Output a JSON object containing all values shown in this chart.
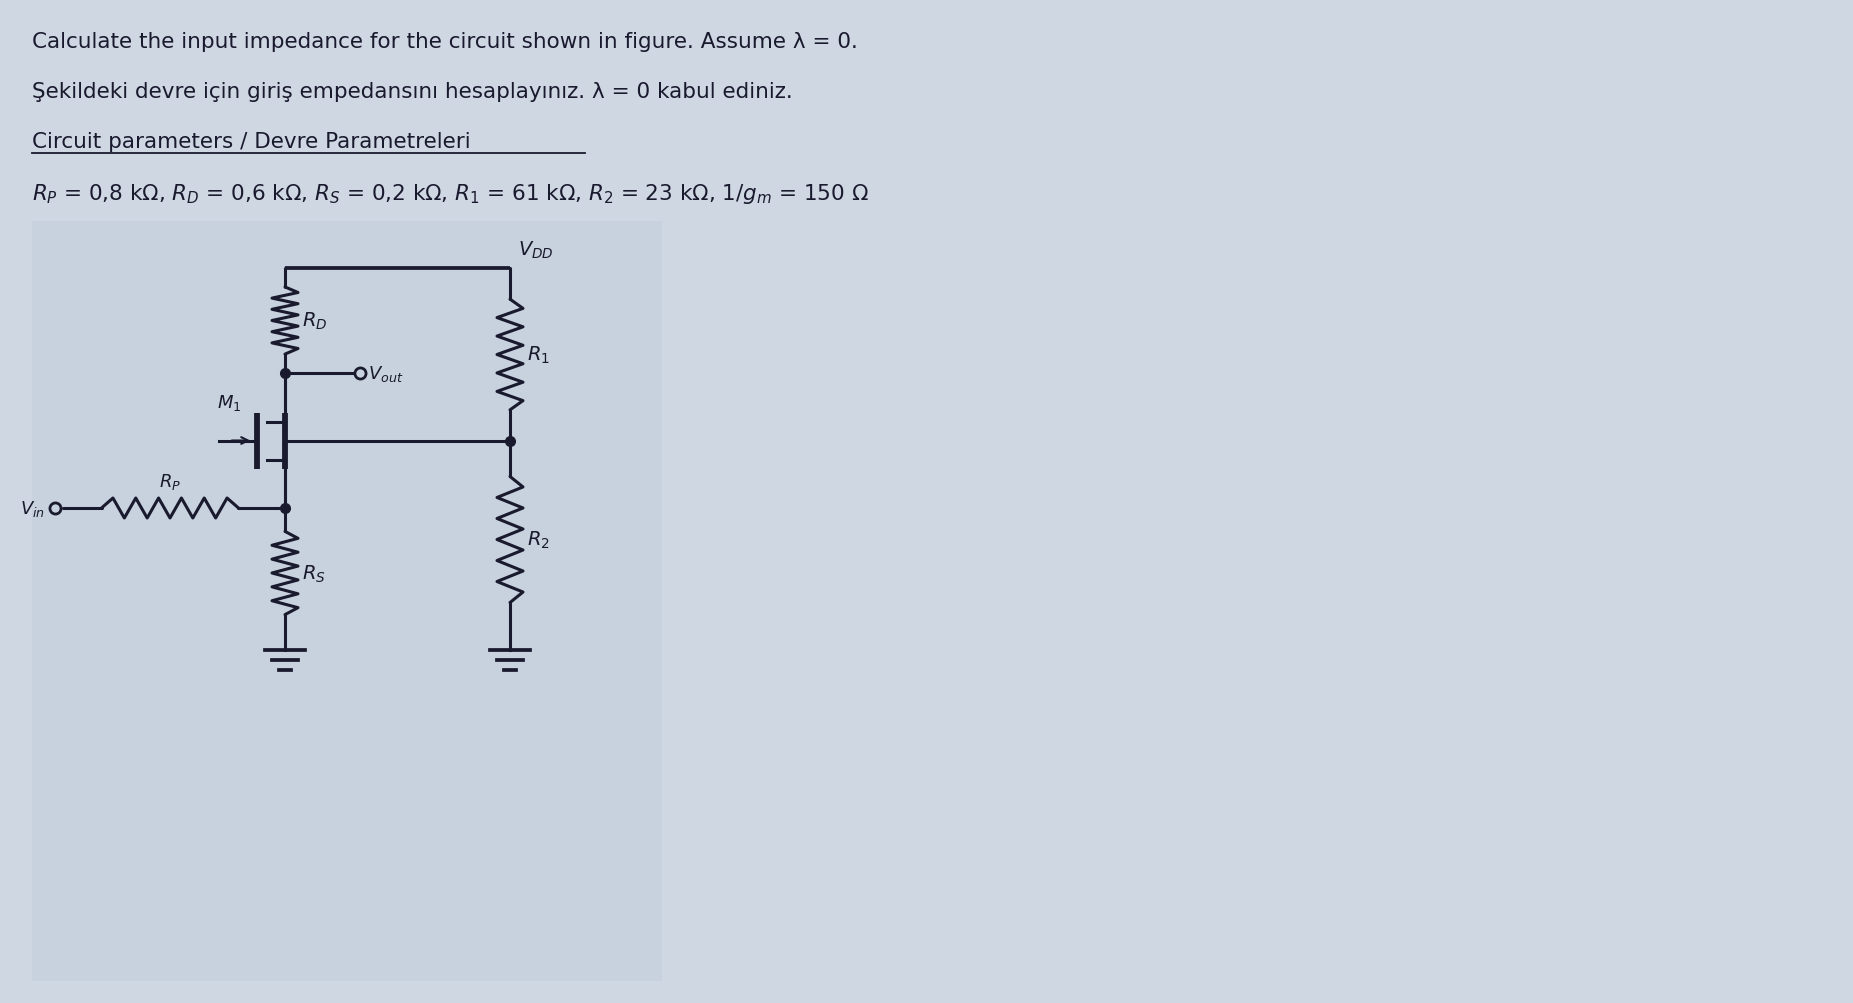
{
  "bg_color": "#cfd7e3",
  "box_bg": "#c8d2de",
  "circuit_color": "#1a1a2e",
  "line1": "Calculate the input impedance for the circuit shown in figure. Assume λ = 0.",
  "line2": "Şekildeki devre için giriş empedansını hesaplayınız. λ = 0 kabul ediniz.",
  "line3": "Circuit parameters / Devre Parametreleri",
  "fs_body": 15.5,
  "fs_label": 14,
  "fs_circuit": 13
}
